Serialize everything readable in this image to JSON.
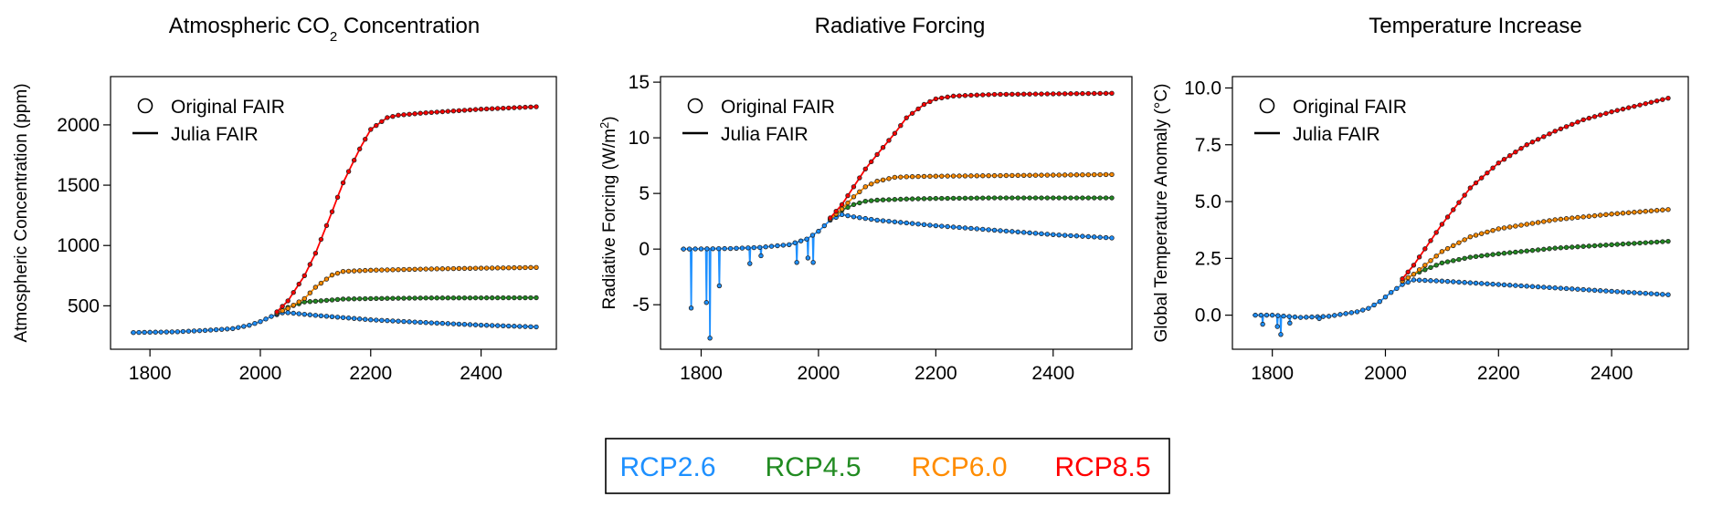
{
  "legend": {
    "original_label": "Original FAIR",
    "julia_label": "Julia FAIR"
  },
  "scenarios": [
    {
      "name": "RCP2.6",
      "color": "#1E90FF"
    },
    {
      "name": "RCP4.5",
      "color": "#228B22"
    },
    {
      "name": "RCP6.0",
      "color": "#FF8C00"
    },
    {
      "name": "RCP8.5",
      "color": "#FF0000"
    }
  ],
  "chart_data": [
    {
      "type": "line",
      "title_pre": "Atmospheric CO",
      "title_sub": "2",
      "title_post": " Concentration",
      "ylabel": "Atmospheric Concentration (ppm)",
      "xlim": [
        1765,
        2500
      ],
      "ylim": [
        140,
        2400
      ],
      "xticks": [
        1800,
        2000,
        2200,
        2400
      ],
      "yticks": [
        500,
        1000,
        1500,
        2000
      ],
      "ytick_labels": [
        "500",
        "1000",
        "1500",
        "2000"
      ],
      "series": [
        {
          "name": "RCP2.6",
          "points": [
            [
              1765,
              278
            ],
            [
              1850,
              285
            ],
            [
              1900,
              296
            ],
            [
              1950,
              311
            ],
            [
              1980,
              339
            ],
            [
              2000,
              369
            ],
            [
              2020,
              412
            ],
            [
              2040,
              442
            ],
            [
              2050,
              443
            ],
            [
              2100,
              421
            ],
            [
              2200,
              384
            ],
            [
              2300,
              361
            ],
            [
              2400,
              340
            ],
            [
              2500,
              325
            ]
          ],
          "spikes": []
        },
        {
          "name": "RCP4.5",
          "points": [
            [
              2030,
              435
            ],
            [
              2050,
              487
            ],
            [
              2080,
              532
            ],
            [
              2100,
              538
            ],
            [
              2150,
              556
            ],
            [
              2200,
              560
            ],
            [
              2300,
              565
            ],
            [
              2400,
              566
            ],
            [
              2500,
              567
            ]
          ],
          "spikes": []
        },
        {
          "name": "RCP6.0",
          "points": [
            [
              2030,
              440
            ],
            [
              2050,
              478
            ],
            [
              2080,
              560
            ],
            [
              2100,
              654
            ],
            [
              2130,
              755
            ],
            [
              2150,
              785
            ],
            [
              2200,
              795
            ],
            [
              2300,
              805
            ],
            [
              2400,
              812
            ],
            [
              2500,
              818
            ]
          ],
          "spikes": []
        },
        {
          "name": "RCP8.5",
          "points": [
            [
              2030,
              450
            ],
            [
              2050,
              541
            ],
            [
              2080,
              750
            ],
            [
              2100,
              936
            ],
            [
              2130,
              1280
            ],
            [
              2150,
              1520
            ],
            [
              2180,
              1800
            ],
            [
              2200,
              1962
            ],
            [
              2230,
              2060
            ],
            [
              2250,
              2080
            ],
            [
              2300,
              2100
            ],
            [
              2400,
              2130
            ],
            [
              2500,
              2150
            ]
          ],
          "spikes": []
        }
      ]
    },
    {
      "type": "line",
      "title_pre": "Radiative Forcing",
      "title_sub": "",
      "title_post": "",
      "ylabel": "Radiative Forcing (W/m²)",
      "xlim": [
        1765,
        2500
      ],
      "ylim": [
        -9,
        15.5
      ],
      "xticks": [
        1800,
        2000,
        2200,
        2400
      ],
      "yticks": [
        -5,
        0,
        5,
        10,
        15
      ],
      "ytick_labels": [
        "-5",
        "0",
        "5",
        "10",
        "15"
      ],
      "series": [
        {
          "name": "RCP2.6",
          "points": [
            [
              1765,
              0
            ],
            [
              1850,
              0.05
            ],
            [
              1900,
              0.15
            ],
            [
              1950,
              0.4
            ],
            [
              1980,
              0.9
            ],
            [
              2000,
              1.6
            ],
            [
              2020,
              2.6
            ],
            [
              2040,
              3.1
            ],
            [
              2060,
              2.9
            ],
            [
              2100,
              2.6
            ],
            [
              2200,
              2.1
            ],
            [
              2300,
              1.7
            ],
            [
              2400,
              1.3
            ],
            [
              2500,
              1.0
            ]
          ],
          "spikes": [
            [
              1783,
              -5.3
            ],
            [
              1809,
              -4.8
            ],
            [
              1815,
              -8.0
            ],
            [
              1831,
              -3.3
            ],
            [
              1883,
              -1.3
            ],
            [
              1902,
              -0.6
            ],
            [
              1963,
              -1.2
            ],
            [
              1982,
              -0.8
            ],
            [
              1991,
              -1.2
            ]
          ]
        },
        {
          "name": "RCP4.5",
          "points": [
            [
              2020,
              2.7
            ],
            [
              2040,
              3.5
            ],
            [
              2060,
              4.0
            ],
            [
              2080,
              4.3
            ],
            [
              2100,
              4.4
            ],
            [
              2150,
              4.5
            ],
            [
              2200,
              4.55
            ],
            [
              2300,
              4.6
            ],
            [
              2400,
              4.6
            ],
            [
              2500,
              4.6
            ]
          ],
          "spikes": []
        },
        {
          "name": "RCP6.0",
          "points": [
            [
              2020,
              2.7
            ],
            [
              2040,
              3.6
            ],
            [
              2060,
              4.7
            ],
            [
              2080,
              5.6
            ],
            [
              2100,
              6.1
            ],
            [
              2130,
              6.45
            ],
            [
              2150,
              6.5
            ],
            [
              2200,
              6.55
            ],
            [
              2300,
              6.6
            ],
            [
              2400,
              6.65
            ],
            [
              2500,
              6.7
            ]
          ],
          "spikes": []
        },
        {
          "name": "RCP8.5",
          "points": [
            [
              2020,
              2.8
            ],
            [
              2040,
              4.0
            ],
            [
              2060,
              5.6
            ],
            [
              2080,
              7.2
            ],
            [
              2100,
              8.5
            ],
            [
              2130,
              10.4
            ],
            [
              2150,
              11.8
            ],
            [
              2180,
              13.0
            ],
            [
              2200,
              13.5
            ],
            [
              2230,
              13.75
            ],
            [
              2250,
              13.8
            ],
            [
              2300,
              13.9
            ],
            [
              2400,
              13.95
            ],
            [
              2500,
              14.0
            ]
          ],
          "spikes": []
        }
      ]
    },
    {
      "type": "line",
      "title_pre": "Temperature Increase",
      "title_sub": "",
      "title_post": "",
      "ylabel": "Global Temperature Anomaly (°C)",
      "xlim": [
        1765,
        2500
      ],
      "ylim": [
        -1.5,
        10.5
      ],
      "xticks": [
        1800,
        2000,
        2200,
        2400
      ],
      "yticks": [
        0,
        2.5,
        5,
        7.5,
        10
      ],
      "ytick_labels": [
        "0.0",
        "2.5",
        "5.0",
        "7.5",
        "10.0"
      ],
      "series": [
        {
          "name": "RCP2.6",
          "points": [
            [
              1765,
              0
            ],
            [
              1800,
              0
            ],
            [
              1850,
              -0.1
            ],
            [
              1900,
              -0.05
            ],
            [
              1950,
              0.15
            ],
            [
              1970,
              0.3
            ],
            [
              1990,
              0.6
            ],
            [
              2010,
              1.0
            ],
            [
              2030,
              1.35
            ],
            [
              2050,
              1.55
            ],
            [
              2100,
              1.5
            ],
            [
              2200,
              1.35
            ],
            [
              2300,
              1.2
            ],
            [
              2400,
              1.05
            ],
            [
              2500,
              0.9
            ]
          ],
          "spikes": [
            [
              1783,
              -0.4
            ],
            [
              1809,
              -0.5
            ],
            [
              1815,
              -0.85
            ],
            [
              1831,
              -0.35
            ],
            [
              1883,
              -0.15
            ]
          ]
        },
        {
          "name": "RCP4.5",
          "points": [
            [
              2030,
              1.5
            ],
            [
              2050,
              1.8
            ],
            [
              2100,
              2.3
            ],
            [
              2150,
              2.55
            ],
            [
              2200,
              2.7
            ],
            [
              2300,
              2.95
            ],
            [
              2400,
              3.1
            ],
            [
              2500,
              3.25
            ]
          ],
          "spikes": []
        },
        {
          "name": "RCP6.0",
          "points": [
            [
              2030,
              1.5
            ],
            [
              2050,
              1.8
            ],
            [
              2100,
              2.8
            ],
            [
              2150,
              3.45
            ],
            [
              2200,
              3.8
            ],
            [
              2300,
              4.2
            ],
            [
              2400,
              4.45
            ],
            [
              2500,
              4.65
            ]
          ],
          "spikes": []
        },
        {
          "name": "RCP8.5",
          "points": [
            [
              2030,
              1.6
            ],
            [
              2050,
              2.2
            ],
            [
              2100,
              4.0
            ],
            [
              2150,
              5.6
            ],
            [
              2200,
              6.7
            ],
            [
              2250,
              7.5
            ],
            [
              2300,
              8.1
            ],
            [
              2350,
              8.6
            ],
            [
              2400,
              8.95
            ],
            [
              2450,
              9.25
            ],
            [
              2500,
              9.55
            ]
          ],
          "spikes": []
        }
      ]
    }
  ]
}
